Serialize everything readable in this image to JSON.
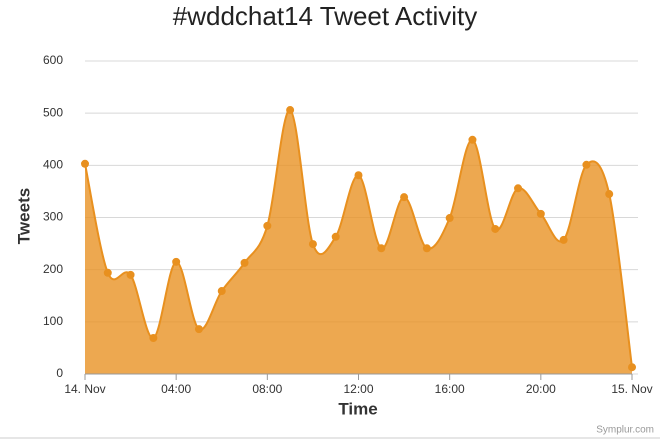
{
  "chart_data": {
    "type": "areaspline",
    "title": "#wddchat14 Tweet Activity",
    "x_label": "Time",
    "y_label": "Tweets",
    "credit": "Symplur.com",
    "x": [
      0,
      1,
      2,
      3,
      4,
      5,
      6,
      7,
      8,
      9,
      10,
      11,
      12,
      13,
      14,
      15,
      16,
      17,
      18,
      19,
      20,
      21,
      22,
      23,
      24
    ],
    "series": [
      {
        "name": "Tweets",
        "color": "#e8901f",
        "values": [
          403,
          194,
          190,
          69,
          215,
          86,
          159,
          213,
          284,
          506,
          249,
          263,
          381,
          241,
          339,
          241,
          299,
          449,
          278,
          356,
          307,
          257,
          401,
          345,
          13
        ]
      }
    ],
    "xlim": [
      0,
      24
    ],
    "xticks": [
      {
        "value": 0,
        "label": "14. Nov"
      },
      {
        "value": 4,
        "label": "04:00"
      },
      {
        "value": 8,
        "label": "08:00"
      },
      {
        "value": 12,
        "label": "12:00"
      },
      {
        "value": 16,
        "label": "16:00"
      },
      {
        "value": 20,
        "label": "20:00"
      },
      {
        "value": 24,
        "label": "15. Nov"
      }
    ],
    "ylim": [
      0,
      600
    ],
    "yticks": [
      0,
      100,
      200,
      300,
      400,
      500,
      600
    ],
    "grid": true
  }
}
